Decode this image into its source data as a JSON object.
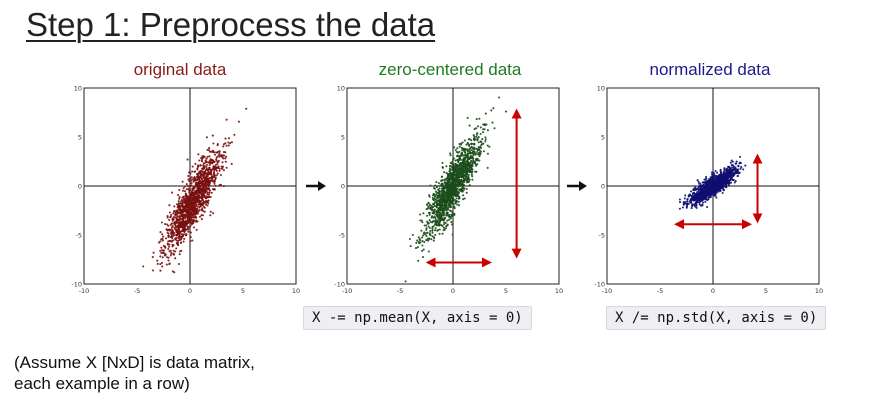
{
  "slide": {
    "title": "Step 1: Preprocess the data",
    "code_mean": "X -= np.mean(X, axis = 0)",
    "code_std": "X /= np.std(X, axis = 0)",
    "note_line1": "(Assume X [NxD] is data matrix,",
    "note_line2": "each example in a row)"
  },
  "chart_data": [
    {
      "type": "scatter",
      "title": "original data",
      "title_color": "#8b1a1a",
      "point_color": "#7a1010",
      "xlim": [
        -10,
        10
      ],
      "ylim": [
        -10,
        10
      ],
      "xticks": [
        "-10",
        "-5",
        "0",
        "5",
        "10"
      ],
      "yticks": [
        "10",
        "5",
        "0",
        "-5",
        "-10"
      ],
      "grid": false,
      "cloud": {
        "center": [
          0.3,
          -1.6
        ],
        "slope": 2.1,
        "major_sd": 6.2,
        "minor_sd": 0.62
      }
    },
    {
      "type": "scatter",
      "title": "zero-centered data",
      "title_color": "#1f7a1f",
      "point_color": "#1b4d1b",
      "xlim": [
        -10,
        10
      ],
      "ylim": [
        -10,
        10
      ],
      "xticks": [
        "-10",
        "-5",
        "0",
        "5",
        "10"
      ],
      "yticks": [
        "10",
        "5",
        "0",
        "-5",
        "-10"
      ],
      "grid": false,
      "cloud": {
        "center": [
          0,
          0
        ],
        "slope": 2.1,
        "major_sd": 6.2,
        "minor_sd": 0.62
      },
      "spread_arrows": [
        {
          "from": [
            6,
            7.5
          ],
          "to": [
            6,
            -7
          ]
        },
        {
          "from": [
            -2.2,
            -7.8
          ],
          "to": [
            3.3,
            -7.8
          ]
        }
      ]
    },
    {
      "type": "scatter",
      "title": "normalized data",
      "title_color": "#1a1a8b",
      "point_color": "#101070",
      "xlim": [
        -10,
        10
      ],
      "ylim": [
        -10,
        10
      ],
      "xticks": [
        "-10",
        "-5",
        "0",
        "5",
        "10"
      ],
      "yticks": [
        "10",
        "5",
        "0",
        "-5",
        "-10"
      ],
      "grid": false,
      "cloud": {
        "center": [
          0,
          0
        ],
        "slope": 0.8,
        "major_sd": 2.9,
        "minor_sd": 0.38
      },
      "spread_arrows": [
        {
          "from": [
            4.2,
            2.9
          ],
          "to": [
            4.2,
            -3.4
          ]
        },
        {
          "from": [
            -3.3,
            -3.9
          ],
          "to": [
            3.3,
            -3.9
          ]
        }
      ]
    }
  ]
}
